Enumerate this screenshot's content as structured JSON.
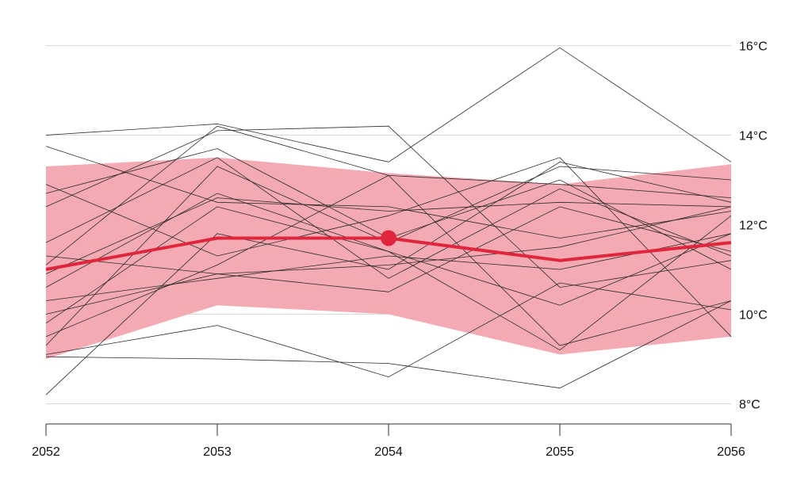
{
  "chart_data": {
    "type": "line",
    "title": "",
    "xlabel": "",
    "ylabel": "",
    "x": [
      2052,
      2053,
      2054,
      2055,
      2056
    ],
    "x_tick_labels": [
      "2052",
      "2053",
      "2054",
      "2055",
      "2056"
    ],
    "ylim": [
      7.6,
      16.8
    ],
    "y_ticks": [
      8,
      10,
      12,
      14,
      16
    ],
    "y_tick_labels": [
      "8°C",
      "10°C",
      "12°C",
      "14°C",
      "16°C"
    ],
    "grid": true,
    "legend": "none",
    "band": {
      "lower": [
        9.0,
        10.2,
        10.0,
        9.1,
        9.5
      ],
      "upper": [
        13.3,
        13.5,
        13.15,
        12.9,
        13.35
      ]
    },
    "mean": {
      "values": [
        11.0,
        11.7,
        11.7,
        11.2,
        11.6
      ],
      "highlight_index": 2
    },
    "members": [
      [
        14.0,
        14.25,
        13.4,
        15.95,
        13.4
      ],
      [
        13.75,
        12.5,
        12.4,
        11.7,
        12.3
      ],
      [
        12.9,
        11.3,
        12.2,
        13.5,
        9.5
      ],
      [
        12.7,
        13.7,
        11.7,
        13.0,
        11.0
      ],
      [
        12.4,
        14.1,
        14.2,
        10.6,
        11.2
      ],
      [
        11.6,
        13.5,
        10.8,
        12.8,
        11.3
      ],
      [
        11.3,
        10.9,
        11.1,
        11.5,
        12.4
      ],
      [
        11.1,
        14.2,
        13.1,
        12.9,
        12.6
      ],
      [
        10.9,
        12.6,
        12.3,
        12.5,
        12.4
      ],
      [
        10.6,
        12.7,
        11.4,
        10.2,
        11.8
      ],
      [
        10.3,
        10.8,
        11.3,
        11.0,
        11.8
      ],
      [
        10.0,
        10.9,
        10.5,
        12.4,
        11.4
      ],
      [
        9.8,
        12.4,
        11.4,
        9.2,
        12.2
      ],
      [
        9.5,
        11.1,
        13.1,
        9.3,
        10.3
      ],
      [
        9.3,
        13.3,
        11.6,
        13.3,
        13.0
      ],
      [
        9.1,
        9.75,
        8.6,
        10.7,
        10.1
      ],
      [
        9.05,
        9.0,
        8.9,
        8.35,
        10.3
      ],
      [
        8.2,
        11.8,
        11.0,
        13.4,
        12.5
      ]
    ],
    "colors": {
      "band": "#f4aab2",
      "mean": "#e0263d",
      "member": "#2b2b2b",
      "grid": "#d9d9d9",
      "axis": "#333333"
    }
  }
}
